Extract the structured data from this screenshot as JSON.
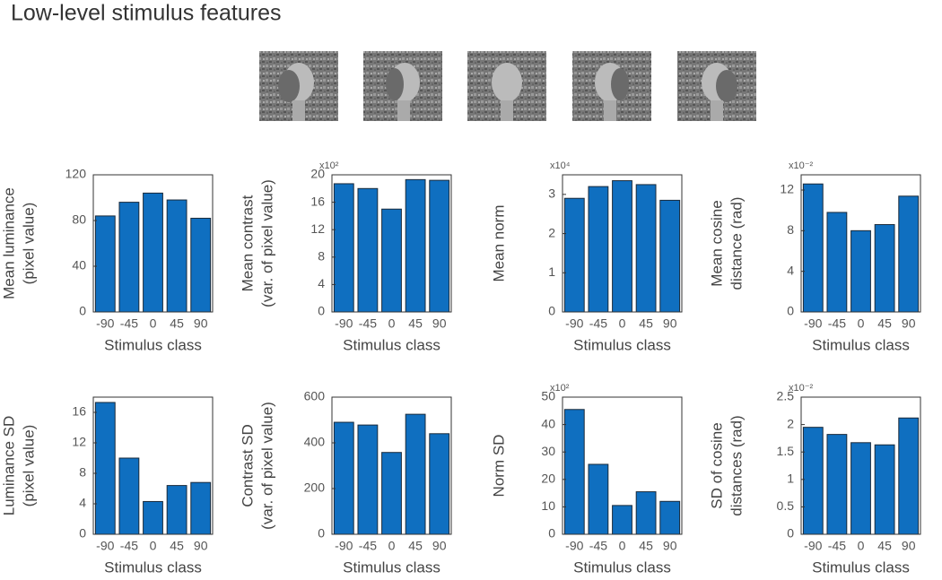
{
  "title": "Low-level stimulus features",
  "chart_data": [
    {
      "type": "bar",
      "ylabel": [
        "Mean luminance",
        "(pixel value)"
      ],
      "xlabel": "Stimulus class",
      "categories": [
        "-90",
        "-45",
        "0",
        "45",
        "90"
      ],
      "values": [
        84,
        96,
        104,
        98,
        82
      ],
      "color": "#0f6fc0",
      "ylim": [
        0,
        120
      ],
      "yticks": [
        0,
        40,
        80,
        120
      ]
    },
    {
      "type": "bar",
      "ylabel": [
        "Mean contrast",
        "(var. of pixel value)"
      ],
      "xlabel": "Stimulus class",
      "y_multiplier": "x10²",
      "categories": [
        "-90",
        "-45",
        "0",
        "45",
        "90"
      ],
      "values": [
        18.7,
        18.0,
        15.0,
        19.3,
        19.2
      ],
      "color": "#0f6fc0",
      "ylim": [
        0,
        20
      ],
      "yticks": [
        0,
        4,
        8,
        12,
        16,
        20
      ]
    },
    {
      "type": "bar",
      "ylabel": [
        "Mean norm"
      ],
      "xlabel": "Stimulus class",
      "y_multiplier": "x10⁴",
      "categories": [
        "-90",
        "-45",
        "0",
        "45",
        "90"
      ],
      "values": [
        2.9,
        3.2,
        3.35,
        3.25,
        2.85
      ],
      "color": "#0f6fc0",
      "ylim": [
        0,
        3.5
      ],
      "yticks": [
        0,
        1,
        2,
        3
      ]
    },
    {
      "type": "bar",
      "ylabel": [
        "Mean cosine",
        "distance (rad)"
      ],
      "xlabel": "Stimulus class",
      "y_multiplier": "x10⁻²",
      "categories": [
        "-90",
        "-45",
        "0",
        "45",
        "90"
      ],
      "values": [
        12.6,
        9.8,
        8.0,
        8.6,
        11.4
      ],
      "color": "#0f6fc0",
      "ylim": [
        0,
        13.5
      ],
      "yticks": [
        0,
        4,
        8,
        12
      ]
    },
    {
      "type": "bar",
      "ylabel": [
        "Luminance SD",
        "(pixel value)"
      ],
      "xlabel": "Stimulus class",
      "categories": [
        "-90",
        "-45",
        "0",
        "45",
        "90"
      ],
      "values": [
        17.3,
        10.0,
        4.3,
        6.4,
        6.8
      ],
      "color": "#0f6fc0",
      "ylim": [
        0,
        18
      ],
      "yticks": [
        0,
        4,
        8,
        12,
        16
      ]
    },
    {
      "type": "bar",
      "ylabel": [
        "Contrast SD",
        "(var. of pixel value)"
      ],
      "xlabel": "Stimulus class",
      "categories": [
        "-90",
        "-45",
        "0",
        "45",
        "90"
      ],
      "values": [
        490,
        478,
        358,
        525,
        440
      ],
      "color": "#0f6fc0",
      "ylim": [
        0,
        600
      ],
      "yticks": [
        0,
        200,
        400,
        600
      ]
    },
    {
      "type": "bar",
      "ylabel": [
        "Norm SD"
      ],
      "xlabel": "Stimulus class",
      "y_multiplier": "x10²",
      "categories": [
        "-90",
        "-45",
        "0",
        "45",
        "90"
      ],
      "values": [
        45.5,
        25.5,
        10.5,
        15.5,
        12
      ],
      "color": "#0f6fc0",
      "ylim": [
        0,
        50
      ],
      "yticks": [
        0,
        10,
        20,
        30,
        40,
        50
      ]
    },
    {
      "type": "bar",
      "ylabel": [
        "SD of cosine",
        "distances (rad)"
      ],
      "xlabel": "Stimulus class",
      "y_multiplier": "x10⁻²",
      "categories": [
        "-90",
        "-45",
        "0",
        "45",
        "90"
      ],
      "values": [
        1.95,
        1.82,
        1.67,
        1.63,
        2.12
      ],
      "color": "#0f6fc0",
      "ylim": [
        0,
        2.5
      ],
      "yticks": [
        0,
        0.5,
        1,
        1.5,
        2,
        2.5
      ]
    }
  ]
}
